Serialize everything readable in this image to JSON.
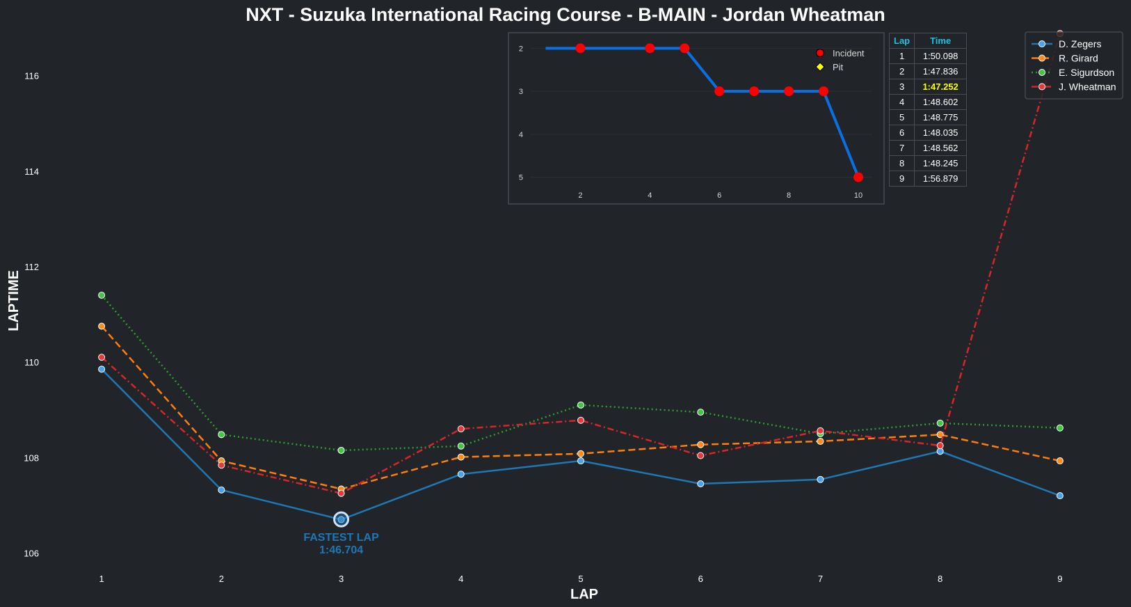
{
  "title": "NXT - Suzuka International Racing Course - B-MAIN - Jordan Wheatman",
  "chart_data": [
    {
      "type": "line",
      "title": "NXT - Suzuka International Racing Course - B-MAIN - Jordan Wheatman",
      "xlabel": "LAP",
      "ylabel": "LAPTIME",
      "x": [
        1,
        2,
        3,
        4,
        5,
        6,
        7,
        8,
        9
      ],
      "xlim": [
        0.5,
        9.5
      ],
      "ylim": [
        105.7,
        117.0
      ],
      "yticks": [
        106,
        108,
        110,
        112,
        114,
        116
      ],
      "grid": false,
      "legend": "top-right",
      "series": [
        {
          "name": "D. Zegers",
          "color": "#1f77b4",
          "marker": "#4aa3f0",
          "dash": "solid",
          "values": [
            109.85,
            107.32,
            106.7,
            107.65,
            107.93,
            107.45,
            107.54,
            108.13,
            107.2
          ]
        },
        {
          "name": "R. Girard",
          "color": "#ff7f0e",
          "marker": "#ff8c1a",
          "dash": "dashed",
          "values": [
            110.75,
            107.93,
            107.34,
            108.01,
            108.08,
            108.27,
            108.34,
            108.48,
            107.93
          ]
        },
        {
          "name": "E. Sigurdson",
          "color": "#2ca02c",
          "marker": "#43c643",
          "dash": "dotted",
          "values": [
            111.4,
            108.48,
            108.15,
            108.24,
            109.1,
            108.95,
            108.5,
            108.72,
            108.62
          ]
        },
        {
          "name": "J. Wheatman",
          "color": "#d62728",
          "marker": "#e8383a",
          "dash": "dashdot",
          "values": [
            110.1,
            107.84,
            107.25,
            108.6,
            108.78,
            108.04,
            108.56,
            108.25,
            116.88
          ]
        }
      ],
      "annotation": {
        "label": "FASTEST LAP",
        "time": "1:46.704",
        "lap": 3,
        "value": 106.704,
        "color": "#1f77b4"
      }
    },
    {
      "type": "line",
      "title": "",
      "xlabel": "",
      "ylabel": "",
      "x": [
        1,
        2,
        3,
        4,
        5,
        6,
        7,
        8,
        9,
        10
      ],
      "values": [
        2,
        2,
        2,
        2,
        2,
        3,
        3,
        3,
        3,
        5
      ],
      "incident_laps": [
        2,
        4,
        5,
        6,
        7,
        8,
        9,
        10
      ],
      "pit_laps": [],
      "xlim": [
        0.55,
        10.4
      ],
      "ylim": [
        5.25,
        1.8
      ],
      "xticks": [
        2,
        4,
        6,
        8,
        10
      ],
      "yticks": [
        2,
        3,
        4,
        5
      ],
      "y_inverted": true,
      "line_color": "#0a6fe0",
      "incident_color": "#ff0000",
      "pit_color": "#ffff00",
      "legend": [
        {
          "label": "Incident",
          "shape": "circle"
        },
        {
          "label": "Pit",
          "shape": "diamond"
        }
      ]
    }
  ],
  "lap_table": {
    "headers": [
      "Lap",
      "Time"
    ],
    "best_lap": 3,
    "rows": [
      {
        "lap": "1",
        "time": "1:50.098"
      },
      {
        "lap": "2",
        "time": "1:47.836"
      },
      {
        "lap": "3",
        "time": "1:47.252"
      },
      {
        "lap": "4",
        "time": "1:48.602"
      },
      {
        "lap": "5",
        "time": "1:48.775"
      },
      {
        "lap": "6",
        "time": "1:48.035"
      },
      {
        "lap": "7",
        "time": "1:48.562"
      },
      {
        "lap": "8",
        "time": "1:48.245"
      },
      {
        "lap": "9",
        "time": "1:56.879"
      }
    ]
  }
}
